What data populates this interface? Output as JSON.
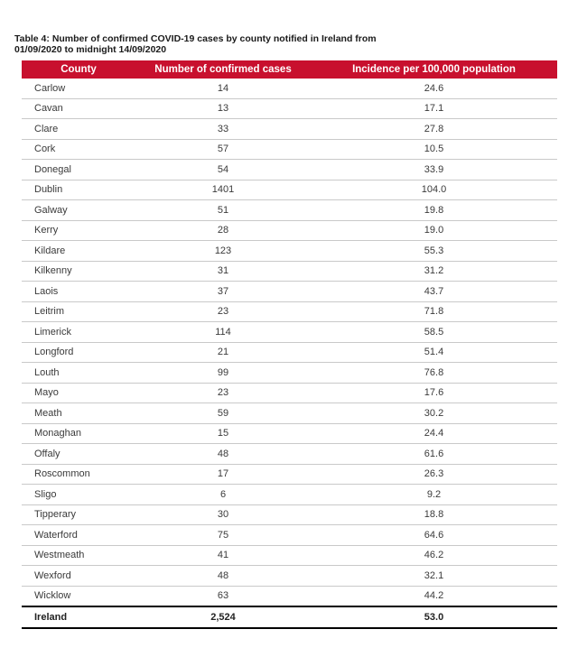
{
  "caption": {
    "line1": "Table 4: Number of confirmed COVID-19 cases by county notified in Ireland from",
    "line2": "01/09/2020 to midnight 14/09/2020"
  },
  "header": {
    "county": "County",
    "cases": "Number of confirmed cases",
    "incidence": "Incidence per 100,000 population"
  },
  "rows": [
    {
      "county": "Carlow",
      "cases": "14",
      "incidence": "24.6"
    },
    {
      "county": "Cavan",
      "cases": "13",
      "incidence": "17.1"
    },
    {
      "county": "Clare",
      "cases": "33",
      "incidence": "27.8"
    },
    {
      "county": "Cork",
      "cases": "57",
      "incidence": "10.5"
    },
    {
      "county": "Donegal",
      "cases": "54",
      "incidence": "33.9"
    },
    {
      "county": "Dublin",
      "cases": "1401",
      "incidence": "104.0"
    },
    {
      "county": "Galway",
      "cases": "51",
      "incidence": "19.8"
    },
    {
      "county": "Kerry",
      "cases": "28",
      "incidence": "19.0"
    },
    {
      "county": "Kildare",
      "cases": "123",
      "incidence": "55.3"
    },
    {
      "county": "Kilkenny",
      "cases": "31",
      "incidence": "31.2"
    },
    {
      "county": "Laois",
      "cases": "37",
      "incidence": "43.7"
    },
    {
      "county": "Leitrim",
      "cases": "23",
      "incidence": "71.8"
    },
    {
      "county": "Limerick",
      "cases": "114",
      "incidence": "58.5"
    },
    {
      "county": "Longford",
      "cases": "21",
      "incidence": "51.4"
    },
    {
      "county": "Louth",
      "cases": "99",
      "incidence": "76.8"
    },
    {
      "county": "Mayo",
      "cases": "23",
      "incidence": "17.6"
    },
    {
      "county": "Meath",
      "cases": "59",
      "incidence": "30.2"
    },
    {
      "county": "Monaghan",
      "cases": "15",
      "incidence": "24.4"
    },
    {
      "county": "Offaly",
      "cases": "48",
      "incidence": "61.6"
    },
    {
      "county": "Roscommon",
      "cases": "17",
      "incidence": "26.3"
    },
    {
      "county": "Sligo",
      "cases": "6",
      "incidence": "9.2"
    },
    {
      "county": "Tipperary",
      "cases": "30",
      "incidence": "18.8"
    },
    {
      "county": "Waterford",
      "cases": "75",
      "incidence": "64.6"
    },
    {
      "county": "Westmeath",
      "cases": "41",
      "incidence": "46.2"
    },
    {
      "county": "Wexford",
      "cases": "48",
      "incidence": "32.1"
    },
    {
      "county": "Wicklow",
      "cases": "63",
      "incidence": "44.2"
    }
  ],
  "total": {
    "county": "Ireland",
    "cases": "2,524",
    "incidence": "53.0"
  },
  "colors": {
    "header_bg": "#c8102e",
    "header_text": "#ffffff"
  }
}
